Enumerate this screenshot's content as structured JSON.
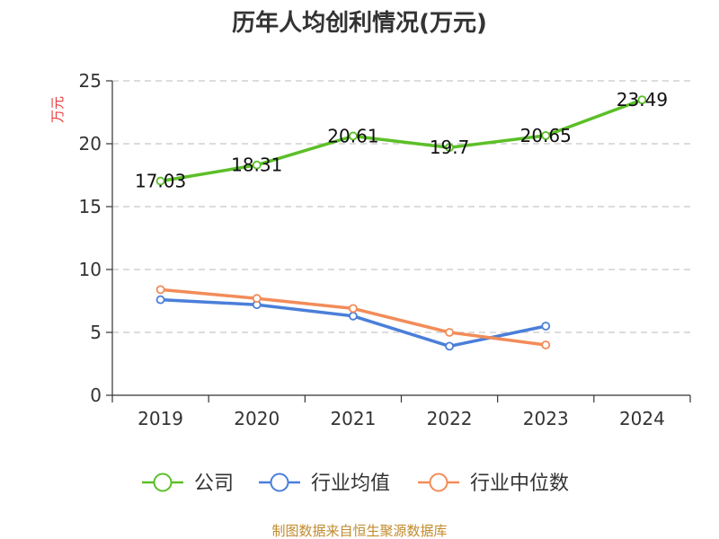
{
  "chart_data": {
    "type": "line",
    "title": "历年人均创利情况(万元)",
    "ylabel": "万元",
    "xlabel": "",
    "categories": [
      "2019",
      "2020",
      "2021",
      "2022",
      "2023",
      "2024"
    ],
    "ylim": [
      0,
      25
    ],
    "yticks": [
      0,
      5,
      10,
      15,
      20,
      25
    ],
    "grid": true,
    "legend_position": "bottom",
    "series": [
      {
        "name": "公司",
        "color": "#5cbf28",
        "values": [
          17.03,
          18.31,
          20.61,
          19.7,
          20.65,
          23.49
        ],
        "labels": [
          "17.03",
          "18.31",
          "20.61",
          "19.7",
          "20.65",
          "23.49"
        ]
      },
      {
        "name": "行业均值",
        "color": "#4a7fd9",
        "values": [
          7.6,
          7.2,
          6.3,
          3.9,
          5.5,
          null
        ]
      },
      {
        "name": "行业中位数",
        "color": "#f28c59",
        "values": [
          8.4,
          7.7,
          6.9,
          5.0,
          4.0,
          null
        ]
      }
    ],
    "source": "制图数据来自恒生聚源数据库"
  }
}
